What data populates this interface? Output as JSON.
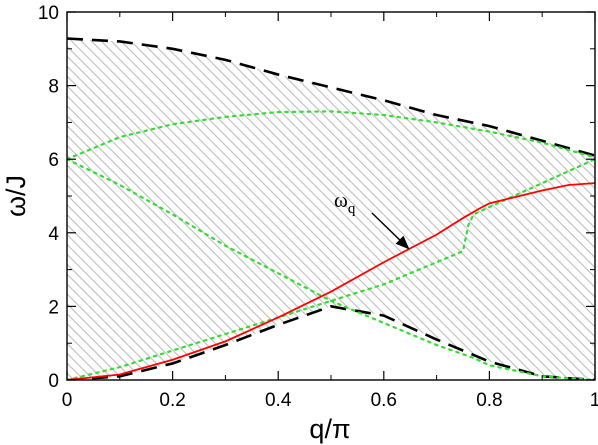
{
  "chart_data": {
    "type": "line",
    "xlabel": "q/π",
    "ylabel": "ω/J",
    "xlim": [
      0,
      1
    ],
    "ylim": [
      0,
      10
    ],
    "xticks": [
      "0",
      "0.2",
      "0.4",
      "0.6",
      "0.8",
      "1"
    ],
    "yticks": [
      "0",
      "2",
      "4",
      "6",
      "8",
      "10"
    ],
    "grid": false,
    "legend": "none",
    "shaded_region": {
      "color": "#bdbdbd",
      "pattern": "diagonal-hatch",
      "upper": {
        "x": [
          0,
          0.1,
          0.2,
          0.3,
          0.4,
          0.5,
          0.6,
          0.7,
          0.8,
          0.9,
          1.0
        ],
        "y": [
          9.28,
          9.2,
          9.0,
          8.7,
          8.3,
          7.95,
          7.6,
          7.2,
          6.9,
          6.5,
          6.1
        ]
      },
      "lower": {
        "x": [
          0,
          0.1,
          0.2,
          0.3,
          0.4,
          0.5,
          0.6,
          0.7,
          0.8,
          0.9,
          1.0
        ],
        "y": [
          0.0,
          0.1,
          0.45,
          0.95,
          1.5,
          2.0,
          1.75,
          1.1,
          0.5,
          0.1,
          0.0
        ]
      }
    },
    "series": [
      {
        "style": "dashed",
        "color": "#000000",
        "x": [
          0,
          0.1,
          0.2,
          0.3,
          0.4,
          0.5,
          0.6,
          0.7,
          0.8,
          0.9,
          1.0
        ],
        "y": [
          9.28,
          9.2,
          9.0,
          8.7,
          8.3,
          7.95,
          7.6,
          7.2,
          6.9,
          6.5,
          6.1
        ]
      },
      {
        "style": "dashed",
        "color": "#000000",
        "x": [
          0,
          0.1,
          0.2,
          0.3,
          0.4,
          0.5,
          0.6,
          0.7,
          0.8,
          0.9,
          1.0
        ],
        "y": [
          0.0,
          0.1,
          0.45,
          0.95,
          1.5,
          2.0,
          1.75,
          1.1,
          0.5,
          0.1,
          0.0
        ]
      },
      {
        "style": "dotted",
        "color": "#33dd33",
        "x": [
          0,
          0.1,
          0.2,
          0.3,
          0.4,
          0.5,
          0.6,
          0.7,
          0.8,
          0.9,
          1.0
        ],
        "y": [
          6.0,
          6.6,
          6.95,
          7.15,
          7.28,
          7.3,
          7.2,
          7.0,
          6.75,
          6.45,
          6.05
        ]
      },
      {
        "style": "dotted",
        "color": "#33dd33",
        "x": [
          0,
          0.1,
          0.2,
          0.3,
          0.4,
          0.5,
          0.6,
          0.7,
          0.75,
          0.77,
          0.8,
          0.9,
          1.0
        ],
        "y": [
          6.0,
          5.3,
          4.5,
          3.65,
          2.9,
          2.15,
          1.55,
          0.95,
          0.7,
          0.6,
          0.4,
          0.1,
          0.0
        ]
      },
      {
        "style": "dotted",
        "color": "#33dd33",
        "x": [
          0,
          0.1,
          0.2,
          0.3,
          0.4,
          0.5,
          0.6,
          0.7,
          0.75,
          0.76,
          0.77,
          0.8,
          0.9,
          1.0
        ],
        "y": [
          0.0,
          0.35,
          0.8,
          1.25,
          1.7,
          2.15,
          2.6,
          3.2,
          3.5,
          4.2,
          4.5,
          4.7,
          5.35,
          6.0
        ]
      },
      {
        "style": "solid",
        "color": "#ff0000",
        "x": [
          0,
          0.1,
          0.2,
          0.3,
          0.4,
          0.5,
          0.6,
          0.7,
          0.75,
          0.78,
          0.8,
          0.9,
          0.95,
          1.0
        ],
        "y": [
          0.0,
          0.15,
          0.55,
          1.05,
          1.7,
          2.4,
          3.2,
          3.95,
          4.4,
          4.65,
          4.8,
          5.15,
          5.3,
          5.35
        ]
      }
    ],
    "annotation": {
      "text": "ω",
      "subscript": "q",
      "arrow_to": {
        "x": 0.645,
        "y": 3.6
      }
    }
  }
}
